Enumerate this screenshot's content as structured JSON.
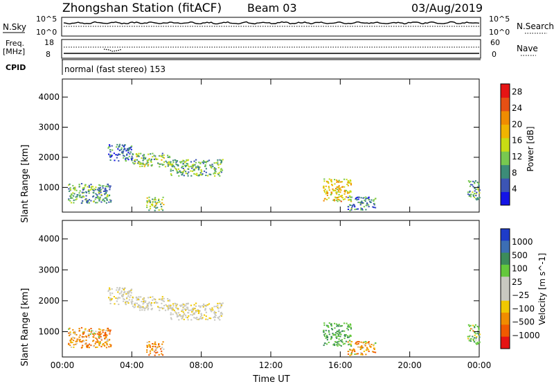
{
  "header": {
    "station": "Zhongshan Station (fitACF)",
    "beam": "Beam 03",
    "date": "03/Aug/2019"
  },
  "top_panels": {
    "nsky_label": "N.Sky",
    "nsky_ticks": [
      "10^5",
      "10^0"
    ],
    "nsearch_label": "N.Search",
    "nsearch_ticks": [
      "10^5",
      "10^0"
    ],
    "freq_label": "Freq.",
    "freq_unit": "[MHz]",
    "freq_ticks": [
      "18",
      "8"
    ],
    "nave_label": "Nave",
    "nave_ticks": [
      "60",
      "0"
    ],
    "cpid_label": "CPID",
    "cpid_text": "normal (fast stereo) 153"
  },
  "colors": {
    "power": [
      "#1414e6",
      "#3c55b4",
      "#3c8c78",
      "#78c850",
      "#c8dc14",
      "#f0b400",
      "#f08c00",
      "#e65014",
      "#e61414"
    ],
    "velocity": [
      "#e61414",
      "#f05a00",
      "#f08c00",
      "#f0c800",
      "#c8c8c0",
      "#c8c8c0",
      "#64c83c",
      "#3c8c5a",
      "#3c6eb4",
      "#1e3cc8"
    ]
  },
  "chart_data": [
    {
      "type": "heatmap",
      "title": "",
      "ylabel": "Slant Range [km]",
      "xlabel": "",
      "xlim": [
        "00:00",
        "00:00"
      ],
      "ylim": [
        180,
        4600
      ],
      "yticks": [
        "1000",
        "2000",
        "3000",
        "4000"
      ],
      "xticks": [
        "00:00",
        "04:00",
        "08:00",
        "12:00",
        "16:00",
        "20:00",
        "00:00"
      ],
      "colorbar_label": "Power [dB]",
      "colorbar_ticks": [
        "4",
        "8",
        "12",
        "16",
        "20",
        "24",
        "28"
      ],
      "colorbar_range": [
        0,
        30
      ],
      "regions": [
        {
          "t_start": 2.6,
          "t_end": 4.0,
          "r_min": 1900,
          "r_max": 2450,
          "level": 6
        },
        {
          "t_start": 4.0,
          "t_end": 6.2,
          "r_min": 1700,
          "r_max": 2150,
          "level": 12
        },
        {
          "t_start": 6.2,
          "t_end": 9.2,
          "r_min": 1400,
          "r_max": 1950,
          "level": 11
        },
        {
          "t_start": 0.3,
          "t_end": 2.8,
          "r_min": 500,
          "r_max": 1150,
          "level": 10
        },
        {
          "t_start": 4.8,
          "t_end": 5.8,
          "r_min": 250,
          "r_max": 700,
          "level": 13
        },
        {
          "t_start": 15.0,
          "t_end": 16.6,
          "r_min": 550,
          "r_max": 1300,
          "level": 18
        },
        {
          "t_start": 16.4,
          "t_end": 18.0,
          "r_min": 250,
          "r_max": 700,
          "level": 8
        },
        {
          "t_start": 23.3,
          "t_end": 24.0,
          "r_min": 600,
          "r_max": 1250,
          "level": 9
        }
      ]
    },
    {
      "type": "heatmap",
      "title": "",
      "ylabel": "Slant Range [km]",
      "xlabel": "Time UT",
      "xlim": [
        "00:00",
        "00:00"
      ],
      "ylim": [
        180,
        4600
      ],
      "yticks": [
        "1000",
        "2000",
        "3000",
        "4000"
      ],
      "xticks": [
        "00:00",
        "04:00",
        "08:00",
        "12:00",
        "16:00",
        "20:00",
        "00:00"
      ],
      "colorbar_label": "Velocity [m s^-1]",
      "colorbar_ticks": [
        "1000",
        "500",
        "100",
        "25",
        "−25",
        "−100",
        "−500",
        "−1000"
      ],
      "regions": [
        {
          "t_start": 2.6,
          "t_end": 4.0,
          "r_min": 1900,
          "r_max": 2450,
          "velocity": 0
        },
        {
          "t_start": 4.0,
          "t_end": 6.2,
          "r_min": 1700,
          "r_max": 2150,
          "velocity": 0
        },
        {
          "t_start": 6.2,
          "t_end": 9.2,
          "r_min": 1400,
          "r_max": 1950,
          "velocity": 0
        },
        {
          "t_start": 0.3,
          "t_end": 2.8,
          "r_min": 500,
          "r_max": 1150,
          "velocity": -150
        },
        {
          "t_start": 4.8,
          "t_end": 5.8,
          "r_min": 250,
          "r_max": 700,
          "velocity": -200
        },
        {
          "t_start": 15.0,
          "t_end": 16.6,
          "r_min": 550,
          "r_max": 1300,
          "velocity": 300
        },
        {
          "t_start": 16.4,
          "t_end": 18.0,
          "r_min": 250,
          "r_max": 700,
          "velocity": -150
        },
        {
          "t_start": 23.3,
          "t_end": 24.0,
          "r_min": 600,
          "r_max": 1250,
          "velocity": 150
        }
      ]
    }
  ]
}
